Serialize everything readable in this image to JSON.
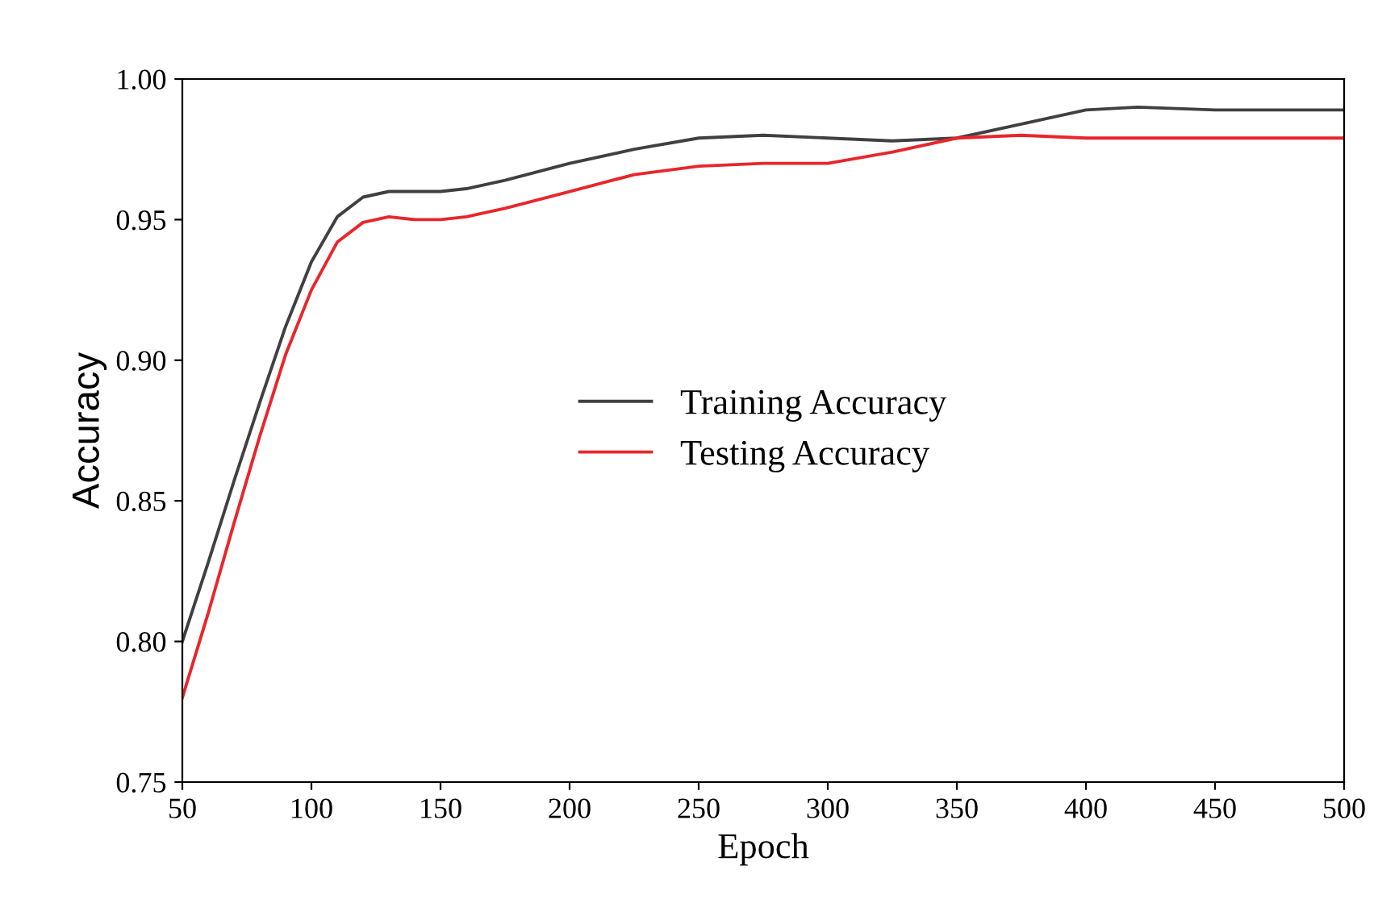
{
  "chart_data": {
    "type": "line",
    "xlabel": "Epoch",
    "ylabel": "Accuracy",
    "xlim": [
      50,
      500
    ],
    "xticks": [
      50,
      100,
      150,
      200,
      250,
      300,
      350,
      400,
      450,
      500
    ],
    "ylim": [
      0.75,
      1.0
    ],
    "yticks": [
      {
        "value": 0.75,
        "label": "0.75"
      },
      {
        "value": 0.8,
        "label": "0.80"
      },
      {
        "value": 0.85,
        "label": "0.85"
      },
      {
        "value": 0.9,
        "label": "0.90"
      },
      {
        "value": 0.95,
        "label": "0.95"
      },
      {
        "value": 1.0,
        "label": "1.00"
      }
    ],
    "x": [
      50,
      60,
      70,
      80,
      90,
      100,
      110,
      120,
      130,
      140,
      150,
      160,
      175,
      200,
      225,
      250,
      275,
      300,
      325,
      350,
      375,
      400,
      420,
      450,
      475,
      500
    ],
    "series": [
      {
        "name": "Training Accuracy",
        "color": "#404040",
        "values": [
          0.8,
          0.828,
          0.857,
          0.885,
          0.912,
          0.935,
          0.951,
          0.958,
          0.96,
          0.96,
          0.96,
          0.961,
          0.964,
          0.97,
          0.975,
          0.979,
          0.98,
          0.979,
          0.978,
          0.979,
          0.984,
          0.989,
          0.99,
          0.989,
          0.989,
          0.989
        ]
      },
      {
        "name": "Testing Accuracy",
        "color": "#e8262b",
        "values": [
          0.78,
          0.81,
          0.842,
          0.873,
          0.902,
          0.925,
          0.942,
          0.949,
          0.951,
          0.95,
          0.95,
          0.951,
          0.954,
          0.96,
          0.966,
          0.969,
          0.97,
          0.97,
          0.974,
          0.979,
          0.98,
          0.979,
          0.979,
          0.979,
          0.979,
          0.979
        ]
      }
    ],
    "legend": "center",
    "grid": false
  }
}
